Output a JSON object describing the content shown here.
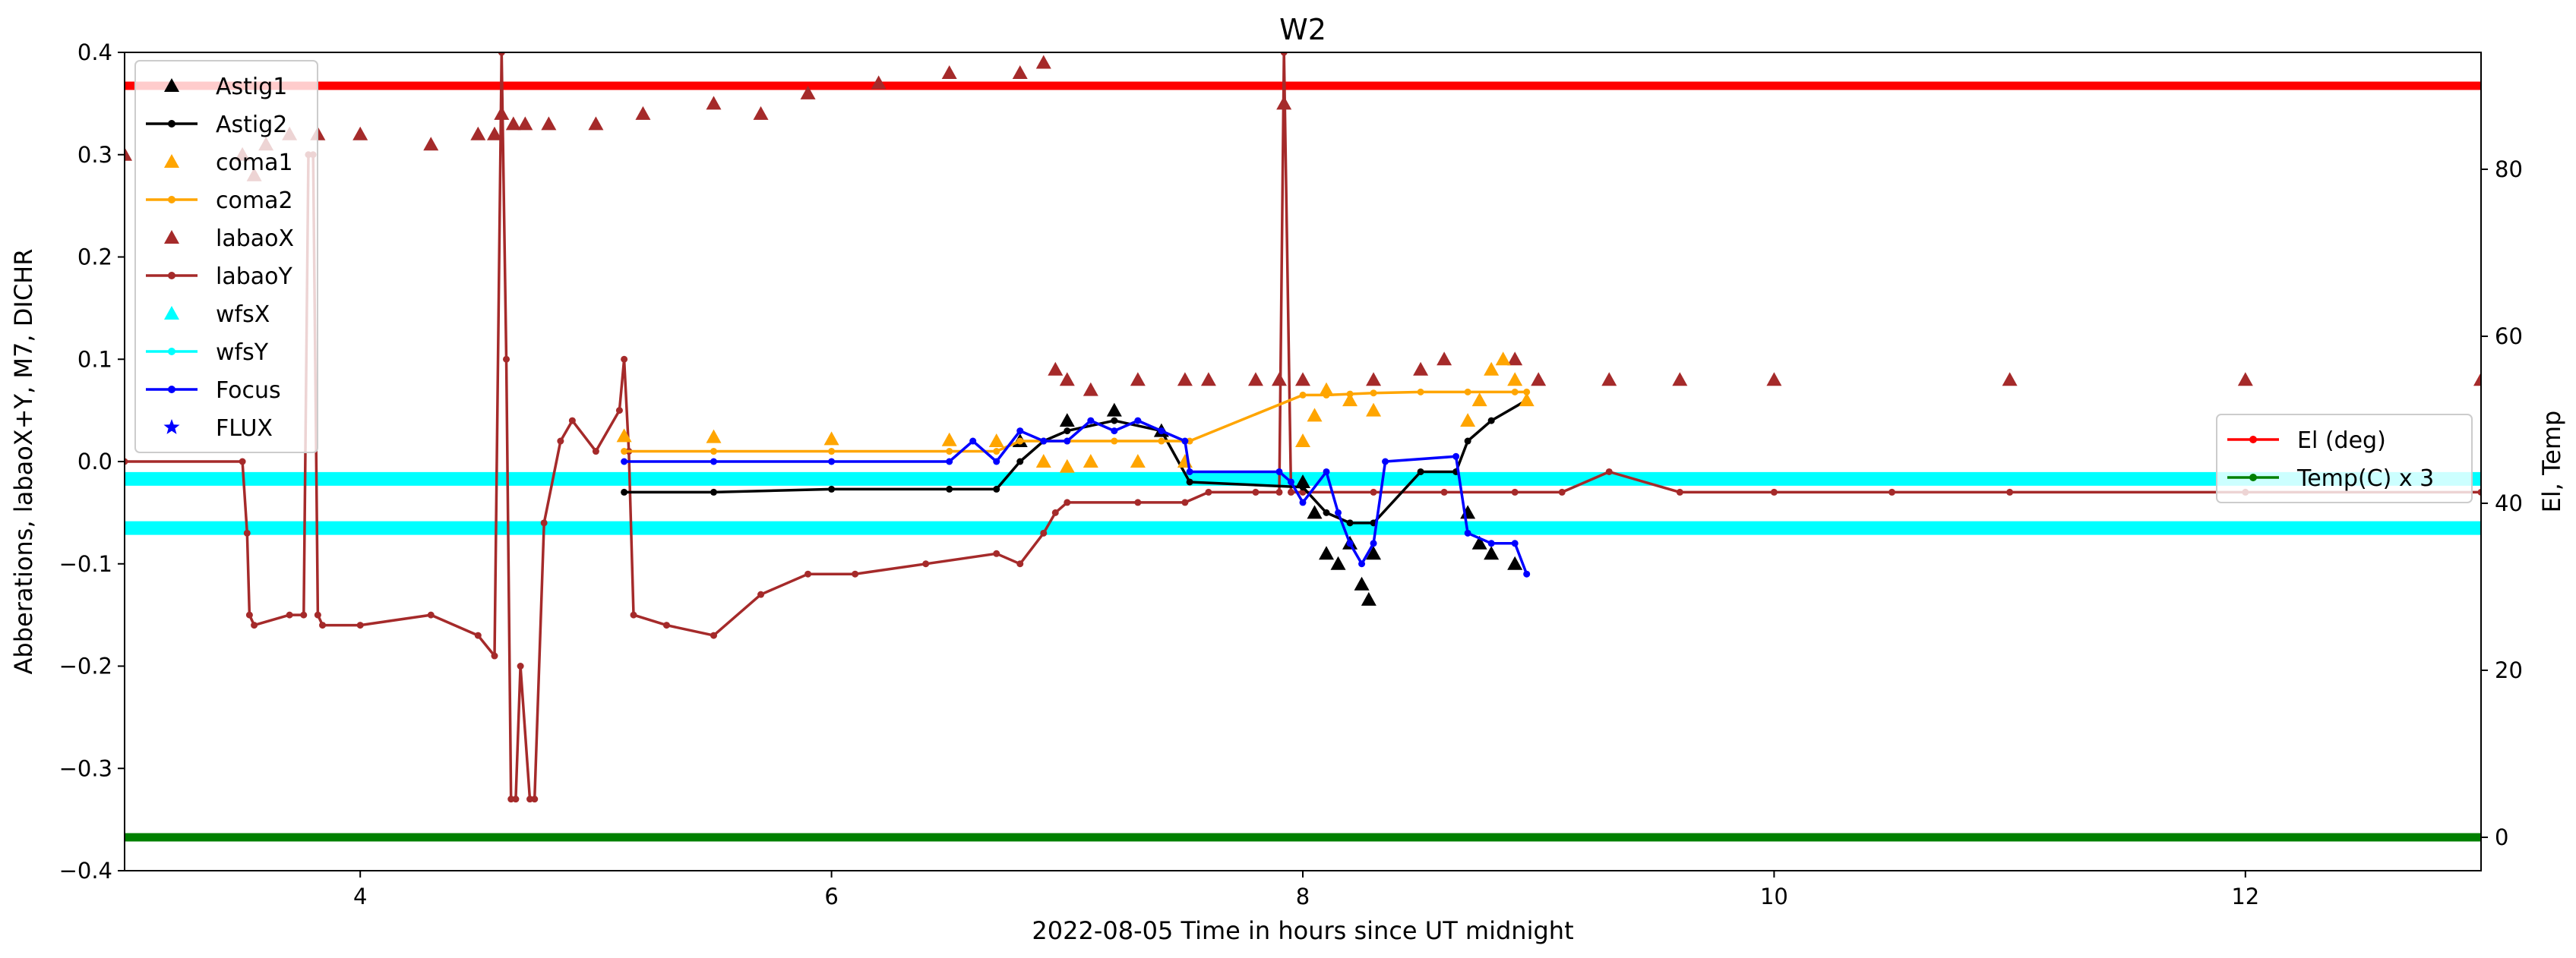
{
  "chart_data": {
    "type": "line",
    "title": "W2",
    "xlabel": "2022-08-05  Time in hours since UT midnight",
    "ylabel": "Abberations, labaoX+Y, M7, DICHR",
    "y2label": "El, Temp",
    "xlim": [
      3.0,
      13.0
    ],
    "ylim": [
      -0.4,
      0.4
    ],
    "y2lim": [
      -4.0,
      94.0
    ],
    "xticks": [
      4,
      6,
      8,
      10,
      12
    ],
    "yticks": [
      -0.4,
      -0.3,
      -0.2,
      -0.1,
      0.0,
      0.1,
      0.2,
      0.3,
      0.4
    ],
    "y2ticks": [
      0,
      20,
      40,
      60,
      80
    ],
    "grid": false,
    "legend_left": {
      "placement": "upper-left",
      "entries": [
        {
          "label": "Astig1",
          "color": "#000000",
          "marker": "triangle",
          "line": false
        },
        {
          "label": "Astig2",
          "color": "#000000",
          "marker": "dot",
          "line": true
        },
        {
          "label": "coma1",
          "color": "#ffa500",
          "marker": "triangle",
          "line": false
        },
        {
          "label": "coma2",
          "color": "#ffa500",
          "marker": "dot",
          "line": true
        },
        {
          "label": "labaoX",
          "color": "#a52a2a",
          "marker": "triangle",
          "line": false
        },
        {
          "label": "labaoY",
          "color": "#a52a2a",
          "marker": "dot",
          "line": true
        },
        {
          "label": "wfsX",
          "color": "#00ffff",
          "marker": "triangle",
          "line": false
        },
        {
          "label": "wfsY",
          "color": "#00ffff",
          "marker": "dot",
          "line": true
        },
        {
          "label": "Focus",
          "color": "#0000ff",
          "marker": "dot",
          "line": true
        },
        {
          "label": "FLUX",
          "color": "#0000ff",
          "marker": "star",
          "line": false
        }
      ]
    },
    "legend_right": {
      "placement": "center-right",
      "entries": [
        {
          "label": "El (deg)",
          "color": "#ff0000",
          "marker": "dot",
          "line": true
        },
        {
          "label": "Temp(C) x 3",
          "color": "#008000",
          "marker": "dot",
          "line": true
        }
      ]
    },
    "series": [
      {
        "name": "El (deg)",
        "axis": "right",
        "color": "#ff0000",
        "style": "line",
        "x": [
          3.0,
          13.0
        ],
        "y": [
          90.0,
          90.0
        ]
      },
      {
        "name": "Temp(C) x 3",
        "axis": "right",
        "color": "#008000",
        "style": "line",
        "x": [
          3.0,
          13.0
        ],
        "y": [
          0.0,
          0.0
        ]
      },
      {
        "name": "wfsX",
        "axis": "left",
        "color": "#00ffff",
        "style": "band",
        "x": [
          3.0,
          13.0
        ],
        "y": [
          -0.065,
          -0.065
        ]
      },
      {
        "name": "wfsY",
        "axis": "left",
        "color": "#00ffff",
        "style": "band",
        "x": [
          3.0,
          13.0
        ],
        "y": [
          -0.017,
          -0.017
        ]
      },
      {
        "name": "labaoY",
        "axis": "left",
        "color": "#a52a2a",
        "style": "line",
        "x": [
          3.0,
          3.5,
          3.52,
          3.53,
          3.55,
          3.7,
          3.76,
          3.78,
          3.8,
          3.82,
          3.84,
          4.0,
          4.3,
          4.5,
          4.57,
          4.6,
          4.62,
          4.64,
          4.66,
          4.68,
          4.72,
          4.74,
          4.78,
          4.85,
          4.9,
          5.0,
          5.1,
          5.12,
          5.14,
          5.16,
          5.3,
          5.5,
          5.7,
          5.9,
          6.1,
          6.4,
          6.7,
          6.8,
          6.9,
          6.95,
          7.0,
          7.3,
          7.5,
          7.6,
          7.8,
          7.9,
          7.92,
          7.95,
          8.0,
          8.3,
          8.6,
          8.9,
          9.1,
          9.3,
          9.6,
          10.0,
          10.5,
          11.0,
          12.0,
          13.0
        ],
        "y": [
          0.0,
          0.0,
          -0.07,
          -0.15,
          -0.16,
          -0.15,
          -0.15,
          0.3,
          0.3,
          -0.15,
          -0.16,
          -0.16,
          -0.15,
          -0.17,
          -0.19,
          0.4,
          0.1,
          -0.33,
          -0.33,
          -0.2,
          -0.33,
          -0.33,
          -0.06,
          0.02,
          0.04,
          0.01,
          0.05,
          0.1,
          0.01,
          -0.15,
          -0.16,
          -0.17,
          -0.13,
          -0.11,
          -0.11,
          -0.1,
          -0.09,
          -0.1,
          -0.07,
          -0.05,
          -0.04,
          -0.04,
          -0.04,
          -0.03,
          -0.03,
          -0.03,
          0.4,
          -0.03,
          -0.03,
          -0.03,
          -0.03,
          -0.03,
          -0.03,
          -0.01,
          -0.03,
          -0.03,
          -0.03,
          -0.03,
          -0.03,
          -0.03
        ]
      },
      {
        "name": "labaoX",
        "axis": "left",
        "color": "#a52a2a",
        "style": "markers",
        "x": [
          3.0,
          3.5,
          3.55,
          3.6,
          3.7,
          3.82,
          4.0,
          4.3,
          4.5,
          4.57,
          4.6,
          4.65,
          4.7,
          4.8,
          5.0,
          5.2,
          5.5,
          5.7,
          5.9,
          6.2,
          6.5,
          6.8,
          6.9,
          6.95,
          7.0,
          7.1,
          7.3,
          7.5,
          7.6,
          7.8,
          7.9,
          7.92,
          8.0,
          8.3,
          8.5,
          8.6,
          8.9,
          9.0,
          9.3,
          9.6,
          10.0,
          11.0,
          12.0,
          13.0
        ],
        "y": [
          0.3,
          0.3,
          0.28,
          0.31,
          0.32,
          0.32,
          0.32,
          0.31,
          0.32,
          0.32,
          0.34,
          0.33,
          0.33,
          0.33,
          0.33,
          0.34,
          0.35,
          0.34,
          0.36,
          0.37,
          0.38,
          0.38,
          0.39,
          0.09,
          0.08,
          0.07,
          0.08,
          0.08,
          0.08,
          0.08,
          0.08,
          0.35,
          0.08,
          0.08,
          0.09,
          0.1,
          0.1,
          0.08,
          0.08,
          0.08,
          0.08,
          0.08,
          0.08,
          0.08
        ]
      },
      {
        "name": "Astig2",
        "axis": "left",
        "color": "#000000",
        "style": "line",
        "x": [
          5.12,
          5.5,
          6.0,
          6.5,
          6.7,
          6.8,
          6.9,
          7.0,
          7.2,
          7.4,
          7.52,
          8.0,
          8.1,
          8.2,
          8.3,
          8.5,
          8.65,
          8.7,
          8.8,
          8.95
        ],
        "y": [
          -0.03,
          -0.03,
          -0.027,
          -0.027,
          -0.027,
          0.0,
          0.02,
          0.03,
          0.04,
          0.03,
          -0.02,
          -0.025,
          -0.05,
          -0.06,
          -0.06,
          -0.01,
          -0.01,
          0.02,
          0.04,
          0.06
        ]
      },
      {
        "name": "Astig1",
        "axis": "left",
        "color": "#000000",
        "style": "markers",
        "x": [
          6.8,
          7.0,
          7.2,
          7.4,
          8.0,
          8.05,
          8.1,
          8.15,
          8.2,
          8.25,
          8.28,
          8.3,
          8.7,
          8.75,
          8.8,
          8.9
        ],
        "y": [
          0.02,
          0.04,
          0.05,
          0.03,
          -0.02,
          -0.05,
          -0.09,
          -0.1,
          -0.08,
          -0.12,
          -0.135,
          -0.09,
          -0.05,
          -0.08,
          -0.09,
          -0.1
        ]
      },
      {
        "name": "coma2",
        "axis": "left",
        "color": "#ffa500",
        "style": "line",
        "x": [
          5.12,
          5.5,
          6.0,
          6.5,
          6.7,
          6.8,
          7.0,
          7.2,
          7.4,
          7.52,
          8.0,
          8.1,
          8.2,
          8.3,
          8.5,
          8.7,
          8.9,
          8.95
        ],
        "y": [
          0.01,
          0.01,
          0.01,
          0.01,
          0.01,
          0.02,
          0.02,
          0.02,
          0.02,
          0.02,
          0.065,
          0.065,
          0.066,
          0.067,
          0.068,
          0.068,
          0.068,
          0.068
        ]
      },
      {
        "name": "coma1",
        "axis": "left",
        "color": "#ffa500",
        "style": "markers",
        "x": [
          5.12,
          5.5,
          6.0,
          6.5,
          6.7,
          6.9,
          7.0,
          7.1,
          7.3,
          7.5,
          8.0,
          8.05,
          8.1,
          8.2,
          8.3,
          8.7,
          8.75,
          8.8,
          8.85,
          8.9,
          8.95
        ],
        "y": [
          0.025,
          0.024,
          0.022,
          0.021,
          0.02,
          0.0,
          -0.005,
          0.0,
          0.0,
          0.0,
          0.02,
          0.045,
          0.07,
          0.06,
          0.05,
          0.04,
          0.06,
          0.09,
          0.1,
          0.08,
          0.06
        ]
      },
      {
        "name": "Focus",
        "axis": "left",
        "color": "#0000ff",
        "style": "line",
        "x": [
          5.12,
          5.5,
          6.0,
          6.5,
          6.6,
          6.7,
          6.8,
          6.9,
          7.0,
          7.1,
          7.2,
          7.3,
          7.4,
          7.5,
          7.52,
          7.9,
          7.95,
          8.0,
          8.1,
          8.15,
          8.2,
          8.25,
          8.3,
          8.35,
          8.65,
          8.7,
          8.8,
          8.9,
          8.95
        ],
        "y": [
          0.0,
          0.0,
          0.0,
          0.0,
          0.02,
          0.0,
          0.03,
          0.02,
          0.02,
          0.04,
          0.03,
          0.04,
          0.03,
          0.02,
          -0.01,
          -0.01,
          -0.02,
          -0.04,
          -0.01,
          -0.05,
          -0.08,
          -0.1,
          -0.08,
          0.0,
          0.005,
          -0.07,
          -0.08,
          -0.08,
          -0.11
        ]
      },
      {
        "name": "FLUX",
        "axis": "left",
        "color": "#0000ff",
        "style": "markers",
        "x": [],
        "y": []
      }
    ]
  }
}
